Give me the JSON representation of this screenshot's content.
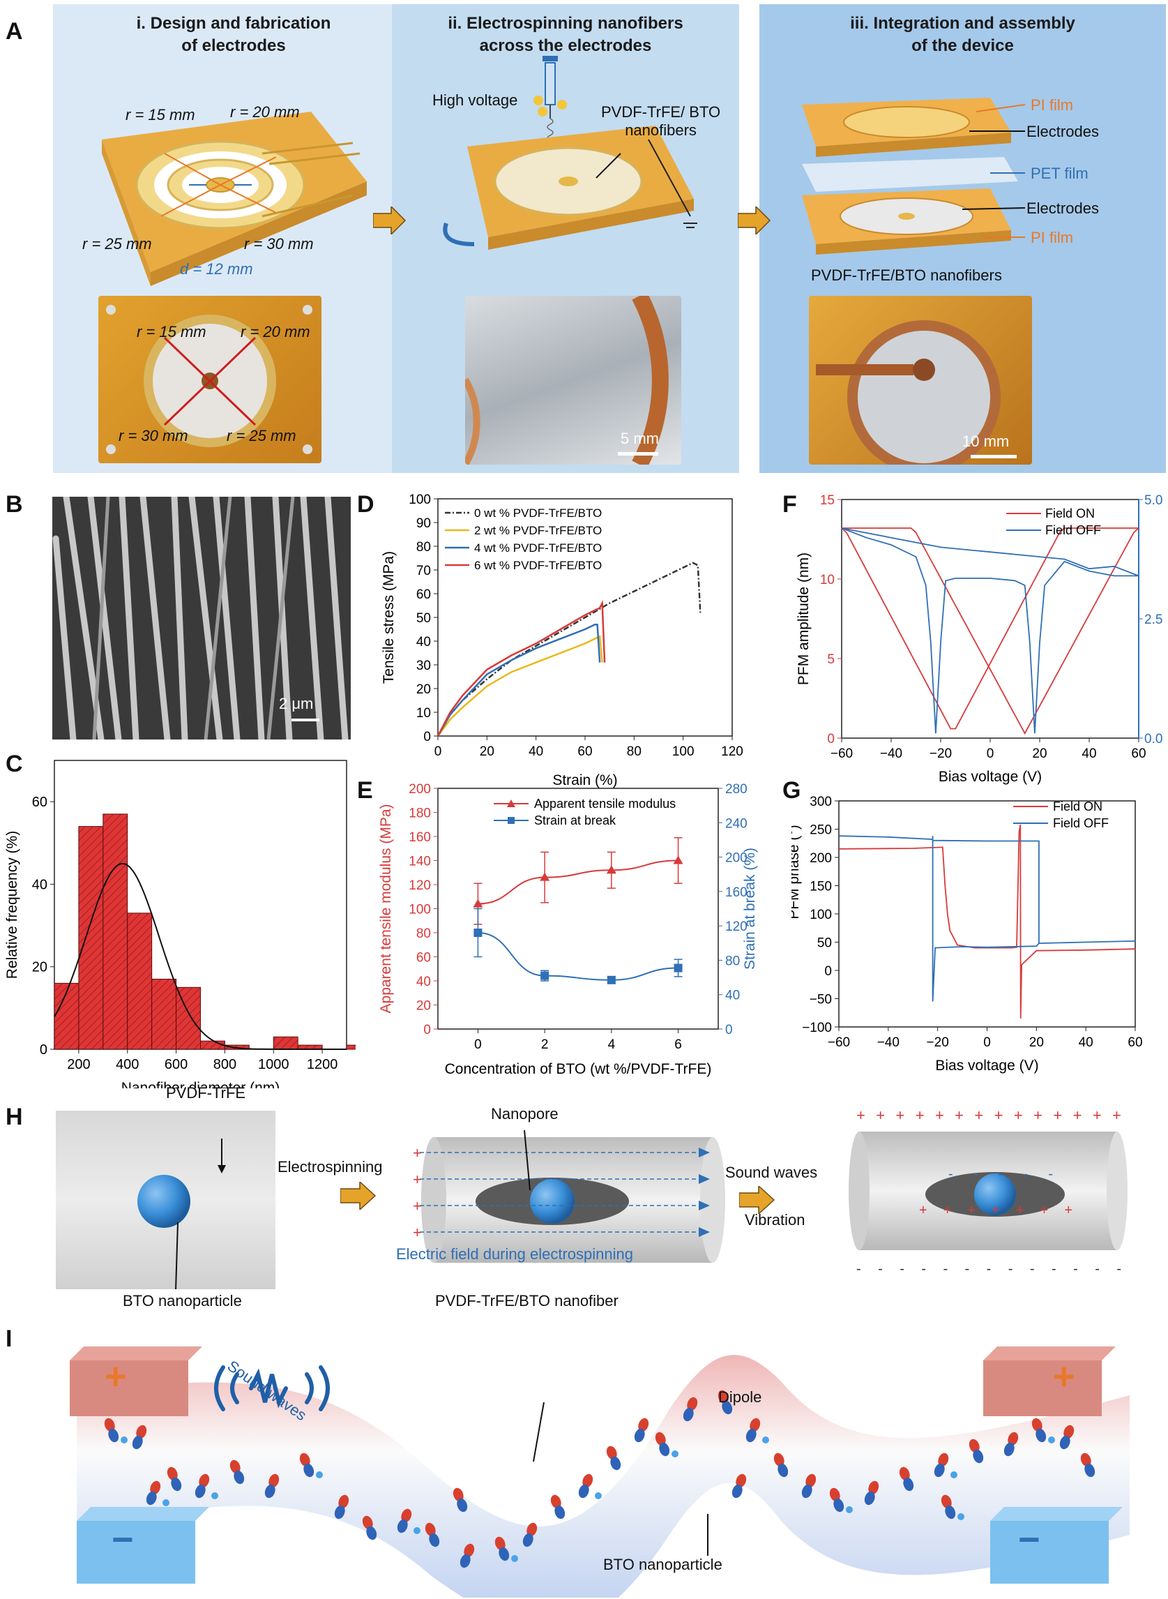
{
  "panelA": {
    "letter": "A",
    "stage1": {
      "title": "i. Design and fabrication\nof electrodes",
      "r15": "r = 15 mm",
      "r20": "r = 20 mm",
      "r25": "r = 25 mm",
      "r30": "r = 30 mm",
      "d12": "d = 12 mm",
      "photo_r15": "r = 15 mm",
      "photo_r20": "r = 20 mm",
      "photo_r30": "r = 30 mm",
      "photo_r25": "r = 25 mm"
    },
    "stage2": {
      "title": "ii. Electrospinning nanofibers\nacross the electrodes",
      "high_voltage": "High voltage",
      "nanofibers": "PVDF-TrFE/ BTO\nnanofibers",
      "scale": "5 mm"
    },
    "stage3": {
      "title": "iii. Integration and assembly\nof the device",
      "pi_film_top": "PI film",
      "electrodes_top": "Electrodes",
      "pet_film": "PET film",
      "electrodes_bottom": "Electrodes",
      "pi_film_bottom": "PI film",
      "nanofibers": "PVDF-TrFE/BTO  nanofibers",
      "scale": "10 mm"
    }
  },
  "panelB": {
    "letter": "B",
    "scale": "2 μm"
  },
  "colors": {
    "red": "#d83a3a",
    "blue": "#2f6fb5",
    "orange": "#e8782a",
    "gold": "#e6b84a",
    "gray": "#444444"
  },
  "chart_data": [
    {
      "id": "C",
      "type": "bar",
      "letter": "C",
      "xlabel": "Nanofiber diameter (nm)",
      "ylabel": "Relative frequency (%)",
      "xlim": [
        100,
        1300
      ],
      "ylim": [
        0,
        70
      ],
      "xticks": [
        "200",
        "400",
        "600",
        "800",
        "1000",
        "1200"
      ],
      "yticks": [
        "0",
        "20",
        "40",
        "60"
      ],
      "bins": [
        100,
        200,
        300,
        400,
        500,
        600,
        700,
        800,
        900,
        1000,
        1100,
        1200,
        1300
      ],
      "values": [
        16,
        54,
        57,
        33,
        17,
        15,
        2,
        1,
        0,
        3,
        1,
        0,
        1
      ],
      "fit": {
        "type": "gaussian",
        "mean": 380,
        "sd": 150,
        "peak": 45
      }
    },
    {
      "id": "D",
      "type": "line",
      "letter": "D",
      "xlabel": "Strain (%)",
      "ylabel": "Tensile stress (MPa)",
      "xlim": [
        0,
        120
      ],
      "ylim": [
        0,
        100
      ],
      "xticks": [
        "0",
        "20",
        "40",
        "60",
        "80",
        "100",
        "120"
      ],
      "yticks": [
        "0",
        "10",
        "20",
        "30",
        "40",
        "50",
        "60",
        "70",
        "80",
        "90",
        "100"
      ],
      "series": [
        {
          "name": "0 wt % PVDF-TrFE/BTO",
          "color": "#333333",
          "dash": true,
          "x": [
            0,
            5,
            10,
            20,
            30,
            40,
            50,
            60,
            70,
            80,
            90,
            100,
            104,
            106,
            107
          ],
          "y": [
            0,
            9,
            15,
            24,
            32,
            38,
            44,
            50,
            56,
            61,
            66,
            71,
            73,
            72,
            52
          ]
        },
        {
          "name": "2 wt % PVDF-TrFE/BTO",
          "color": "#e8b81a",
          "x": [
            0,
            5,
            10,
            20,
            30,
            40,
            50,
            60,
            64,
            66,
            67
          ],
          "y": [
            0,
            7,
            12,
            21,
            27,
            31,
            35,
            39,
            41,
            42,
            31
          ]
        },
        {
          "name": "4 wt % PVDF-TrFE/BTO",
          "color": "#2f6fb5",
          "x": [
            0,
            5,
            10,
            20,
            30,
            40,
            50,
            60,
            64,
            65,
            66
          ],
          "y": [
            0,
            9,
            15,
            26,
            32,
            37,
            41,
            45,
            47,
            47,
            31
          ]
        },
        {
          "name": "6 wt % PVDF-TrFE/BTO",
          "color": "#d83a3a",
          "x": [
            0,
            5,
            10,
            20,
            30,
            40,
            50,
            60,
            66,
            67,
            68
          ],
          "y": [
            0,
            10,
            17,
            28,
            34,
            39,
            45,
            51,
            54,
            56,
            31
          ]
        }
      ]
    },
    {
      "id": "E",
      "type": "line",
      "letter": "E",
      "xlabel": "Concentration of BTO (wt %/PVDF-TrFE)",
      "ylabel_left": "Apparent tensile modulus (MPa)",
      "ylabel_right": "Strain at break (%)",
      "xlim": [
        -1.2,
        7.2
      ],
      "ylim_left": [
        0,
        200
      ],
      "ylim_right": [
        0,
        280
      ],
      "xticks": [
        "0",
        "2",
        "4",
        "6"
      ],
      "yticks_left": [
        "0",
        "20",
        "40",
        "60",
        "80",
        "100",
        "120",
        "140",
        "160",
        "180",
        "200"
      ],
      "yticks_right": [
        "0",
        "40",
        "80",
        "120",
        "160",
        "200",
        "240",
        "280"
      ],
      "x": [
        0,
        2,
        4,
        6
      ],
      "series": [
        {
          "name": "Apparent tensile modulus",
          "color": "#d83a3a",
          "axis": "left",
          "values": [
            104,
            126,
            132,
            140
          ],
          "err": [
            17,
            21,
            15,
            19
          ]
        },
        {
          "name": "Strain at break",
          "color": "#2f6fb5",
          "axis": "right",
          "values": [
            112,
            62,
            57,
            71
          ],
          "err": [
            28,
            6,
            4,
            10
          ]
        }
      ]
    },
    {
      "id": "F",
      "type": "line",
      "letter": "F",
      "xlabel": "Bias voltage (V)",
      "ylabel": "PFM amplitude (nm)",
      "xlim": [
        -60,
        60
      ],
      "ylim_left": [
        0,
        15
      ],
      "ylim_right": [
        0,
        5
      ],
      "xticks": [
        "−60",
        "−40",
        "−20",
        "0",
        "20",
        "40",
        "60"
      ],
      "yticks_left": [
        "0",
        "5",
        "10",
        "15"
      ],
      "yticks_right": [
        "0.0",
        "2.5",
        "5.0"
      ],
      "series": [
        {
          "name": "Field ON",
          "color": "#d83a3a"
        },
        {
          "name": "Field OFF",
          "color": "#2f6fb5"
        }
      ]
    },
    {
      "id": "G",
      "type": "line",
      "letter": "G",
      "xlabel": "Bias voltage (V)",
      "ylabel": "PFM phase (°)",
      "xlim": [
        -60,
        60
      ],
      "ylim": [
        -100,
        300
      ],
      "xticks": [
        "−60",
        "−40",
        "−20",
        "0",
        "20",
        "40",
        "60"
      ],
      "yticks": [
        "−100",
        "−50",
        "0",
        "50",
        "100",
        "150",
        "200",
        "250",
        "300"
      ],
      "series": [
        {
          "name": "Field ON",
          "color": "#d83a3a"
        },
        {
          "name": "Field OFF",
          "color": "#2f6fb5"
        }
      ]
    }
  ],
  "panelH": {
    "letter": "H",
    "pvdf": "PVDF-TrFE",
    "bto": "BTO nanoparticle",
    "electrospinning": "Electrospinning",
    "nanopore": "Nanopore",
    "field": "Electric field during electrospinning",
    "fiber": "PVDF-TrFE/BTO nanofiber",
    "sound": "Sound waves",
    "vibration": "Vibration",
    "plus": "+",
    "minus": "-"
  },
  "panelI": {
    "letter": "I",
    "sound": "Sound waves",
    "dipole": "Dipole",
    "bto": "BTO nanoparticle",
    "plus": "+",
    "minus": "−"
  }
}
